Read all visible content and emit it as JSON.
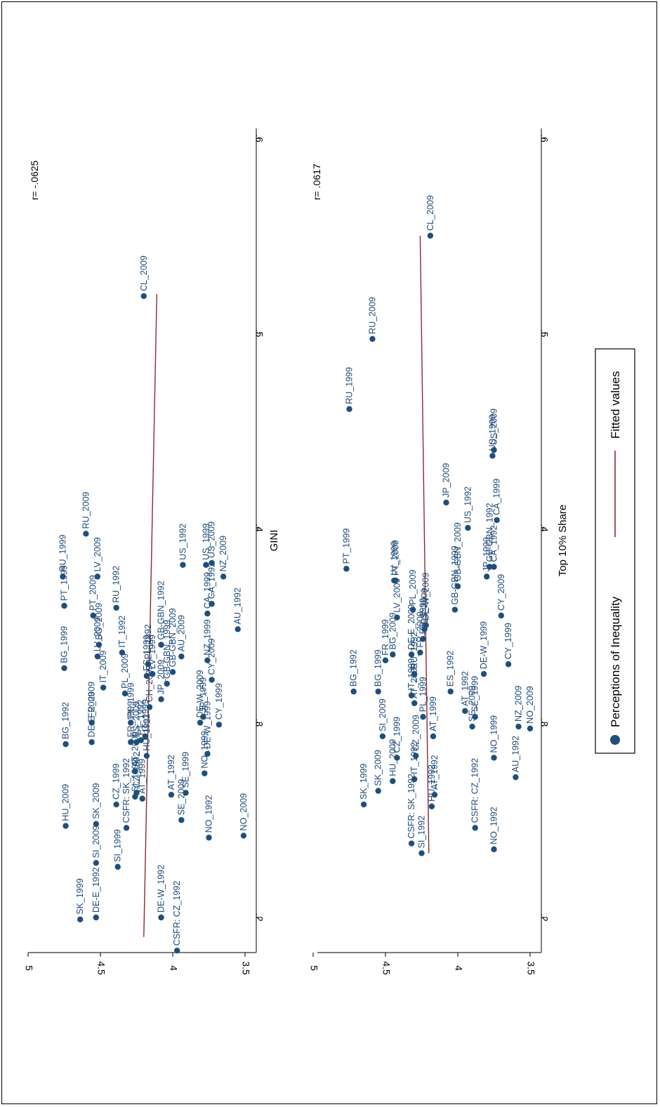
{
  "chart_data": [
    {
      "type": "scatter",
      "title": "",
      "xlabel": "GINI",
      "ylabel": "",
      "annotation": "r= -.0625",
      "xlim": [
        0.18,
        0.6
      ],
      "ylim": [
        3.5,
        5
      ],
      "xticks": [
        ".2",
        ".3",
        ".4",
        ".5",
        ".6"
      ],
      "yticks": [
        "3.5",
        "4",
        "4.5",
        "5"
      ],
      "grid": false,
      "fit": {
        "x": [
          0.19,
          0.52
        ],
        "y": [
          4.2,
          4.11
        ]
      },
      "series": [
        {
          "name": "Perceptions of Inequality",
          "points": [
            {
              "label": "SK_1999",
              "x": 0.199,
              "y": 4.64
            },
            {
              "label": "DE-E_1992",
              "x": 0.2,
              "y": 4.53
            },
            {
              "label": "DE-W_1992",
              "x": 0.2,
              "y": 4.08
            },
            {
              "label": "CSFR: CZ_1992",
              "x": 0.183,
              "y": 3.97
            },
            {
              "label": "SI_1999",
              "x": 0.226,
              "y": 4.38
            },
            {
              "label": "SI_2009",
              "x": 0.228,
              "y": 4.53
            },
            {
              "label": "HU_2009",
              "x": 0.247,
              "y": 4.74
            },
            {
              "label": "SK_2009",
              "x": 0.248,
              "y": 4.53
            },
            {
              "label": "SE_2009",
              "x": 0.25,
              "y": 3.94
            },
            {
              "label": "NO_1992",
              "x": 0.241,
              "y": 3.75
            },
            {
              "label": "NO_2009",
              "x": 0.242,
              "y": 3.51
            },
            {
              "label": "CSFR: SK_1992",
              "x": 0.246,
              "y": 4.32
            },
            {
              "label": "CZ_1999",
              "x": 0.258,
              "y": 4.39
            },
            {
              "label": "SI_1992",
              "x": 0.262,
              "y": 4.26
            },
            {
              "label": "CZ_1992",
              "x": 0.264,
              "y": 4.25
            },
            {
              "label": "AT_1999",
              "x": 0.261,
              "y": 4.21
            },
            {
              "label": "AT_1992",
              "x": 0.263,
              "y": 4.01
            },
            {
              "label": "SE_1999",
              "x": 0.264,
              "y": 3.91
            },
            {
              "label": "AT_2009",
              "x": 0.275,
              "y": 4.26
            },
            {
              "label": "HU_1992",
              "x": 0.283,
              "y": 4.18
            },
            {
              "label": "BG_1992",
              "x": 0.289,
              "y": 4.74
            },
            {
              "label": "DE-E_2009",
              "x": 0.29,
              "y": 4.56
            },
            {
              "label": "FR_1999",
              "x": 0.29,
              "y": 4.29
            },
            {
              "label": "ES_2009",
              "x": 0.29,
              "y": 4.25
            },
            {
              "label": "NO_1999",
              "x": 0.274,
              "y": 3.78
            },
            {
              "label": "DE-W_1999",
              "x": 0.284,
              "y": 3.76
            },
            {
              "label": "FR_2009",
              "x": 0.3,
              "y": 4.56
            },
            {
              "label": "PL_1999",
              "x": 0.3,
              "y": 4.29
            },
            {
              "label": "PT_1992",
              "x": 0.291,
              "y": 4.22
            },
            {
              "label": "IT_1999",
              "x": 0.293,
              "y": 4.19
            },
            {
              "label": "DE-W_2009",
              "x": 0.3,
              "y": 3.81
            },
            {
              "label": "JP_1999",
              "x": 0.303,
              "y": 3.79
            },
            {
              "label": "CH_2009",
              "x": 0.308,
              "y": 4.16
            },
            {
              "label": "JP_2009",
              "x": 0.312,
              "y": 4.08
            },
            {
              "label": "PL_2009",
              "x": 0.315,
              "y": 4.33
            },
            {
              "label": "IT_2009",
              "x": 0.318,
              "y": 4.48
            },
            {
              "label": "GB-GBN_1999",
              "x": 0.32,
              "y": 4.04
            },
            {
              "label": "CY_2009",
              "x": 0.322,
              "y": 3.73
            },
            {
              "label": "ES_1999",
              "x": 0.324,
              "y": 4.18
            },
            {
              "label": "LV_1999",
              "x": 0.325,
              "y": 4.14
            },
            {
              "label": "GB-GBN_2009",
              "x": 0.326,
              "y": 4.0
            },
            {
              "label": "BG_1999",
              "x": 0.328,
              "y": 4.75
            },
            {
              "label": "PL_1992",
              "x": 0.33,
              "y": 4.17
            },
            {
              "label": "CY_1999",
              "x": 0.299,
              "y": 3.68
            },
            {
              "label": "NZ_1999",
              "x": 0.332,
              "y": 3.76
            },
            {
              "label": "AU_2009",
              "x": 0.334,
              "y": 3.94
            },
            {
              "label": "LV_2009",
              "x": 0.334,
              "y": 4.52
            },
            {
              "label": "IT_1992",
              "x": 0.336,
              "y": 4.35
            },
            {
              "label": "GB-GBN_1992",
              "x": 0.34,
              "y": 4.08
            },
            {
              "label": "BG_2009",
              "x": 0.34,
              "y": 4.51
            },
            {
              "label": "AU_1992",
              "x": 0.348,
              "y": 3.55
            },
            {
              "label": "PT_2009",
              "x": 0.355,
              "y": 4.55
            },
            {
              "label": "CA_1999",
              "x": 0.356,
              "y": 3.76
            },
            {
              "label": "RU_1992",
              "x": 0.359,
              "y": 4.39
            },
            {
              "label": "PT_1999",
              "x": 0.36,
              "y": 4.75
            },
            {
              "label": "CA_1992",
              "x": 0.361,
              "y": 3.73
            },
            {
              "label": "NZ_2009",
              "x": 0.375,
              "y": 3.65
            },
            {
              "label": "RU_1999",
              "x": 0.375,
              "y": 4.76
            },
            {
              "label": "LV_2009b",
              "x": 0.375,
              "y": 4.52
            },
            {
              "label": "US_1999",
              "x": 0.381,
              "y": 3.77
            },
            {
              "label": "US_2009",
              "x": 0.382,
              "y": 3.73
            },
            {
              "label": "US_1992",
              "x": 0.381,
              "y": 3.93
            },
            {
              "label": "RU_2009",
              "x": 0.397,
              "y": 4.6
            },
            {
              "label": "CL_2009",
              "x": 0.519,
              "y": 4.2
            }
          ]
        },
        {
          "name": "Fitted values"
        }
      ]
    },
    {
      "type": "scatter",
      "title": "",
      "xlabel": "Top 10% Share",
      "ylabel": "",
      "annotation": "r= .0617",
      "xlim": [
        0.18,
        0.6
      ],
      "ylim": [
        3.5,
        5
      ],
      "xticks": [
        ".2",
        ".3",
        ".4",
        ".5",
        ".6"
      ],
      "yticks": [
        "3.5",
        "4",
        "4.5",
        "5"
      ],
      "grid": false,
      "fit": {
        "x": [
          0.233,
          0.55
        ],
        "y": [
          4.2,
          4.26
        ]
      },
      "series": [
        {
          "name": "Perceptions of Inequality",
          "points": [
            {
              "label": "SI_1992",
              "x": 0.233,
              "y": 4.25
            },
            {
              "label": "CSFR: SK_1992",
              "x": 0.238,
              "y": 4.32
            },
            {
              "label": "NO_1992",
              "x": 0.235,
              "y": 3.75
            },
            {
              "label": "CSFR: CZ_1992",
              "x": 0.246,
              "y": 3.88
            },
            {
              "label": "SK_1999",
              "x": 0.258,
              "y": 4.65
            },
            {
              "label": "HU_1992",
              "x": 0.257,
              "y": 4.18
            },
            {
              "label": "SK_2009",
              "x": 0.265,
              "y": 4.55
            },
            {
              "label": "AT_1992b",
              "x": 0.263,
              "y": 4.16
            },
            {
              "label": "HU_2009",
              "x": 0.27,
              "y": 4.45
            },
            {
              "label": "AU_1992",
              "x": 0.272,
              "y": 3.6
            },
            {
              "label": "IT_1992",
              "x": 0.271,
              "y": 4.3
            },
            {
              "label": "CZ_1999",
              "x": 0.282,
              "y": 4.42
            },
            {
              "label": "CZ_2009",
              "x": 0.283,
              "y": 4.29
            },
            {
              "label": "NO_1999",
              "x": 0.282,
              "y": 3.75
            },
            {
              "label": "SI_2009",
              "x": 0.293,
              "y": 4.52
            },
            {
              "label": "PL_1999",
              "x": 0.303,
              "y": 4.24
            },
            {
              "label": "NO_2009",
              "x": 0.297,
              "y": 3.5
            },
            {
              "label": "NZ_2009",
              "x": 0.298,
              "y": 3.58
            },
            {
              "label": "SE_2009",
              "x": 0.298,
              "y": 3.9
            },
            {
              "label": "AT_1999",
              "x": 0.293,
              "y": 4.17
            },
            {
              "label": "AT_2009",
              "x": 0.31,
              "y": 4.3
            },
            {
              "label": "SE_1999",
              "x": 0.303,
              "y": 3.88
            },
            {
              "label": "AT_1992",
              "x": 0.306,
              "y": 3.95
            },
            {
              "label": "IT_1999",
              "x": 0.314,
              "y": 4.32
            },
            {
              "label": "ES_1992",
              "x": 0.316,
              "y": 4.05
            },
            {
              "label": "BG_1999",
              "x": 0.316,
              "y": 4.55
            },
            {
              "label": "BG_1992",
              "x": 0.316,
              "y": 4.72
            },
            {
              "label": "CY_1999",
              "x": 0.33,
              "y": 3.65
            },
            {
              "label": "DE-W_1999",
              "x": 0.325,
              "y": 3.82
            },
            {
              "label": "FR_1999",
              "x": 0.332,
              "y": 4.5
            },
            {
              "label": "RU_1992",
              "x": 0.325,
              "y": 4.3
            },
            {
              "label": "BG_2009",
              "x": 0.335,
              "y": 4.45
            },
            {
              "label": "FR_2009",
              "x": 0.336,
              "y": 4.26
            },
            {
              "label": "DE-E_2009",
              "x": 0.335,
              "y": 4.32
            },
            {
              "label": "ES_1999",
              "x": 0.343,
              "y": 4.24
            },
            {
              "label": "ES_2009",
              "x": 0.348,
              "y": 4.23
            },
            {
              "label": "DE-W_2009",
              "x": 0.35,
              "y": 4.22
            },
            {
              "label": "LV_2009",
              "x": 0.354,
              "y": 4.42
            },
            {
              "label": "GB-GBN_1999",
              "x": 0.358,
              "y": 4.02
            },
            {
              "label": "CY_2009",
              "x": 0.355,
              "y": 3.7
            },
            {
              "label": "PL_2009",
              "x": 0.358,
              "y": 4.31
            },
            {
              "label": "GB-GBN_2009",
              "x": 0.37,
              "y": 4.0
            },
            {
              "label": "PT_2009",
              "x": 0.373,
              "y": 4.43
            },
            {
              "label": "LV_1999",
              "x": 0.373,
              "y": 4.44
            },
            {
              "label": "JP_1999",
              "x": 0.375,
              "y": 3.8
            },
            {
              "label": "PT_1999",
              "x": 0.379,
              "y": 4.77
            },
            {
              "label": "GB-GBN_1992",
              "x": 0.38,
              "y": 3.78
            },
            {
              "label": "CA_1992",
              "x": 0.38,
              "y": 3.75
            },
            {
              "label": "US_1992",
              "x": 0.4,
              "y": 3.93
            },
            {
              "label": "CA_1999",
              "x": 0.404,
              "y": 3.73
            },
            {
              "label": "JP_2009",
              "x": 0.413,
              "y": 4.08
            },
            {
              "label": "US_1999",
              "x": 0.437,
              "y": 3.76
            },
            {
              "label": "US_2009",
              "x": 0.44,
              "y": 3.75
            },
            {
              "label": "RU_1999",
              "x": 0.461,
              "y": 4.75
            },
            {
              "label": "RU_2009",
              "x": 0.497,
              "y": 4.59
            },
            {
              "label": "CL_2009",
              "x": 0.55,
              "y": 4.19
            }
          ]
        },
        {
          "name": "Fitted values"
        }
      ]
    }
  ],
  "legend": {
    "placement": "right",
    "items": [
      {
        "label": "Perceptions of Inequality",
        "marker": "dot"
      },
      {
        "label": "Fitted values",
        "marker": "line"
      }
    ]
  },
  "colors": {
    "point": "#1f4e7a",
    "point_label": "#1e4a78",
    "fit_line": "#8b2a32",
    "axis": "#000000"
  }
}
